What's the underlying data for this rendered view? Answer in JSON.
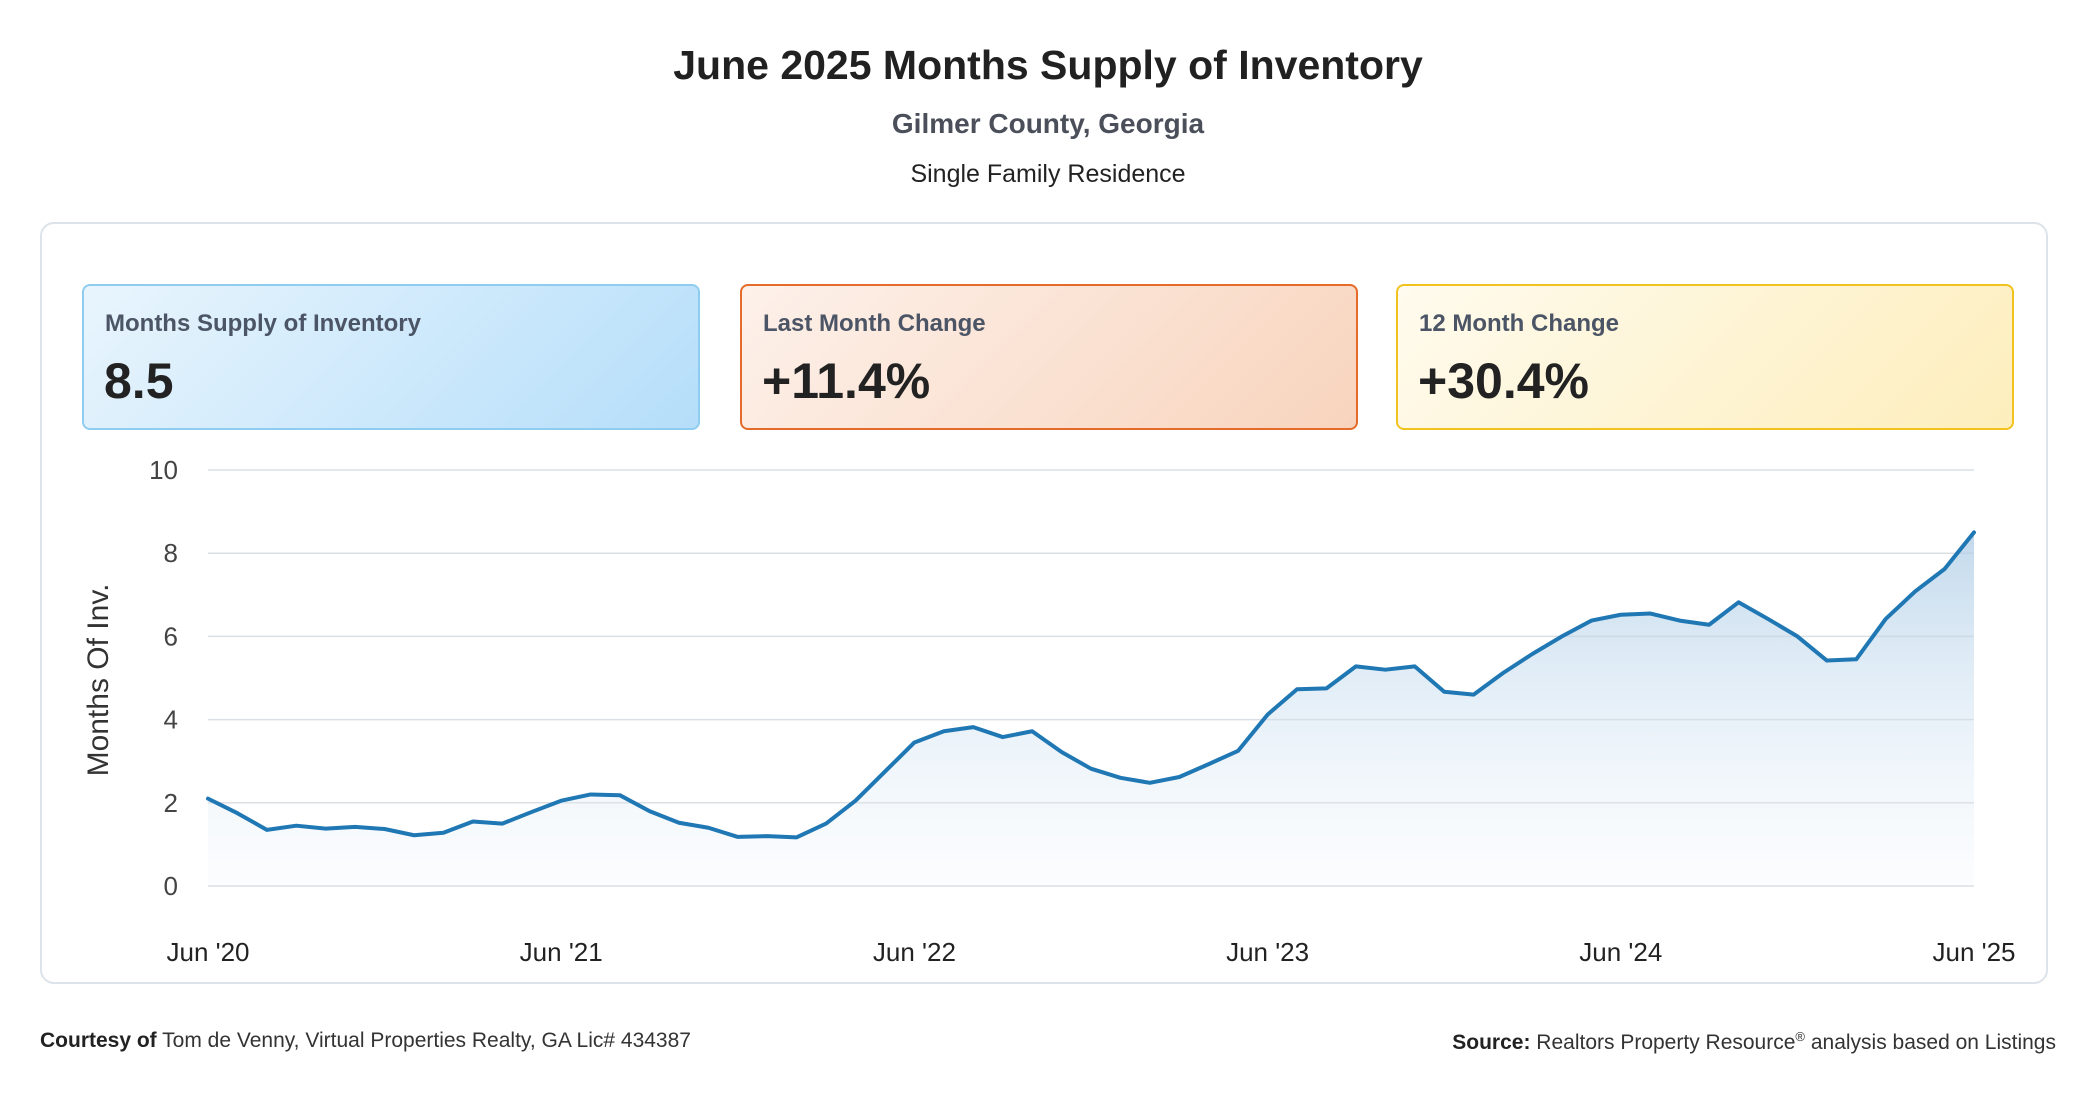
{
  "header": {
    "title": "June 2025 Months Supply of Inventory",
    "subtitle": "Gilmer County, Georgia",
    "property_type": "Single Family Residence"
  },
  "cards": [
    {
      "label": "Months Supply of Inventory",
      "value": "8.5",
      "color": "#b5defa"
    },
    {
      "label": "Last Month Change",
      "value": "+11.4%",
      "color": "#f8d4bd"
    },
    {
      "label": "12 Month Change",
      "value": "+30.4%",
      "color": "#fdeebc"
    }
  ],
  "chart_data": {
    "type": "area",
    "title": "",
    "xlabel": "",
    "ylabel": "Months Of Inv.",
    "ylim": [
      0,
      10
    ],
    "y_ticks": [
      0,
      2,
      4,
      6,
      8,
      10
    ],
    "x_tick_labels": [
      "Jun '20",
      "Jun '21",
      "Jun '22",
      "Jun '23",
      "Jun '24",
      "Jun '25"
    ],
    "line_color": "#1f77b4",
    "grid": true,
    "series": [
      {
        "x": [
          "2020-06",
          "2020-07",
          "2020-08",
          "2020-09",
          "2020-10",
          "2020-11",
          "2020-12",
          "2021-01",
          "2021-02",
          "2021-03",
          "2021-04",
          "2021-05",
          "2021-06",
          "2021-07",
          "2021-08",
          "2021-09",
          "2021-10",
          "2021-11",
          "2021-12",
          "2022-01",
          "2022-02",
          "2022-03",
          "2022-04",
          "2022-05",
          "2022-06",
          "2022-07",
          "2022-08",
          "2022-09",
          "2022-10",
          "2022-11",
          "2022-12",
          "2023-01",
          "2023-02",
          "2023-03",
          "2023-04",
          "2023-05",
          "2023-06",
          "2023-07",
          "2023-08",
          "2023-09",
          "2023-10",
          "2023-11",
          "2023-12",
          "2024-01",
          "2024-02",
          "2024-03",
          "2024-04",
          "2024-05",
          "2024-06",
          "2024-07",
          "2024-08",
          "2024-09",
          "2024-10",
          "2024-11",
          "2024-12",
          "2025-01",
          "2025-02",
          "2025-03",
          "2025-04",
          "2025-05",
          "2025-06"
        ],
        "values": [
          2.1,
          1.75,
          1.35,
          1.45,
          1.38,
          1.42,
          1.37,
          1.22,
          1.28,
          1.55,
          1.5,
          1.78,
          2.05,
          2.2,
          2.18,
          1.8,
          1.52,
          1.4,
          1.18,
          1.2,
          1.17,
          1.5,
          2.05,
          2.75,
          3.45,
          3.72,
          3.82,
          3.58,
          3.72,
          3.22,
          2.82,
          2.6,
          2.48,
          2.62,
          2.93,
          3.25,
          4.12,
          4.73,
          4.75,
          5.28,
          5.2,
          5.28,
          4.67,
          4.6,
          5.12,
          5.58,
          6.0,
          6.38,
          6.52,
          6.55,
          6.38,
          6.28,
          6.82,
          6.42,
          6.0,
          5.42,
          5.45,
          6.42,
          7.08,
          7.62,
          8.5
        ]
      }
    ]
  },
  "footer": {
    "courtesy_label": "Courtesy of",
    "courtesy_text": "Tom de Venny, Virtual Properties Realty, GA Lic# 434387",
    "source_label": "Source:",
    "source_text_a": "Realtors Property Resource",
    "source_reg": "®",
    "source_text_b": " analysis based on Listings"
  }
}
